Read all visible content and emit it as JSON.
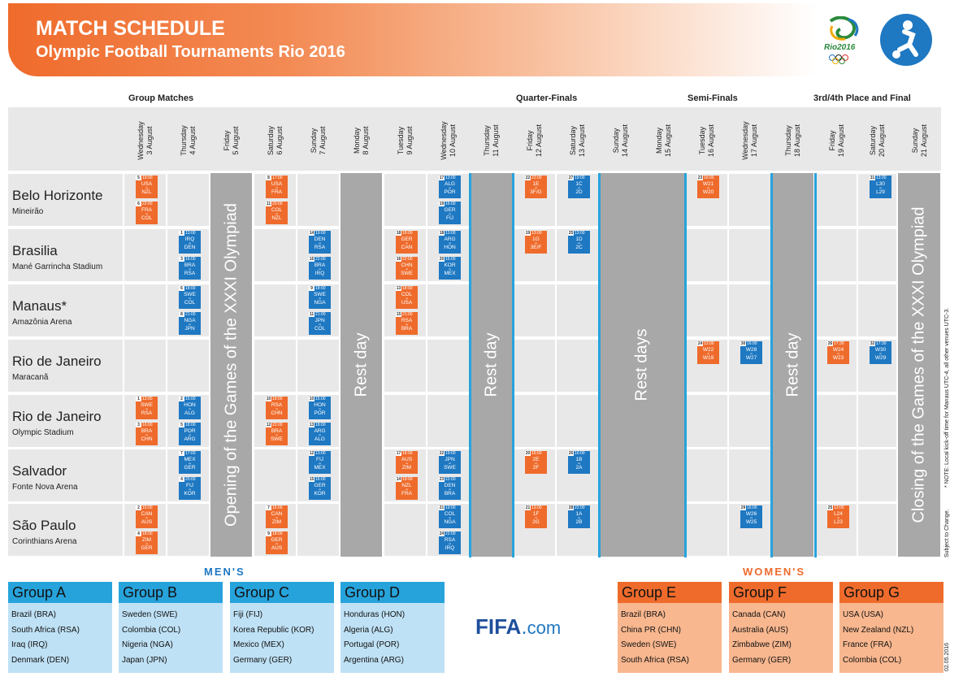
{
  "header": {
    "title": "MATCH SCHEDULE",
    "subtitle": "Olympic Football Tournaments Rio 2016",
    "rio_logo": "Rio2016",
    "fifa": "FIFA",
    "fifa_dot": ".",
    "fifa_com": "com"
  },
  "phases": [
    "Group Matches",
    "Quarter-Finals",
    "Semi-Finals",
    "3rd/4th Place and Final"
  ],
  "days": [
    {
      "line1": "Wednesday",
      "line2": "3 August"
    },
    {
      "line1": "Thursday",
      "line2": "4 August"
    },
    {
      "line1": "Friday",
      "line2": "5 August"
    },
    {
      "line1": "Saturday",
      "line2": "6 August"
    },
    {
      "line1": "Sunday",
      "line2": "7 August"
    },
    {
      "line1": "Monday",
      "line2": "8 August"
    },
    {
      "line1": "Tuesday",
      "line2": "9 August"
    },
    {
      "line1": "Wednesday",
      "line2": "10 August"
    },
    {
      "line1": "Thursday",
      "line2": "11 August"
    },
    {
      "line1": "Friday",
      "line2": "12 August"
    },
    {
      "line1": "Saturday",
      "line2": "13 August"
    },
    {
      "line1": "Sunday",
      "line2": "14 August"
    },
    {
      "line1": "Monday",
      "line2": "15 August"
    },
    {
      "line1": "Tuesday",
      "line2": "16 August"
    },
    {
      "line1": "Wednesday",
      "line2": "17 August"
    },
    {
      "line1": "Thursday",
      "line2": "18 August"
    },
    {
      "line1": "Friday",
      "line2": "19 August"
    },
    {
      "line1": "Saturday",
      "line2": "20 August"
    },
    {
      "line1": "Sunday",
      "line2": "21 August"
    }
  ],
  "venues": [
    {
      "city": "Belo Horizonte",
      "stadium": "Mineirão"
    },
    {
      "city": "Brasilia",
      "stadium": "Mané Garrincha Stadium"
    },
    {
      "city": "Manaus*",
      "stadium": "Amazônia Arena"
    },
    {
      "city": "Rio de Janeiro",
      "stadium": "Maracanã"
    },
    {
      "city": "Rio de Janeiro",
      "stadium": "Olympic Stadium"
    },
    {
      "city": "Salvador",
      "stadium": "Fonte Nova Arena"
    },
    {
      "city": "São Paulo",
      "stadium": "Corinthians Arena"
    }
  ],
  "bands": {
    "opening": "Opening of the Games of the XXXI Olympiad",
    "rest_day": "Rest day",
    "rest_days": "Rest days",
    "closing": "Closing of the Games of the XXXI Olympiad"
  },
  "matches": [
    {
      "n": "5",
      "t": "19:00",
      "a": "USA",
      "h": "NZL",
      "c": "o",
      "d": 0,
      "v": 0,
      "s": 0
    },
    {
      "n": "6",
      "t": "22:00",
      "a": "FRA",
      "h": "COL",
      "c": "o",
      "d": 0,
      "v": 0,
      "s": 1
    },
    {
      "n": "8",
      "t": "17:00",
      "a": "USA",
      "h": "FRA",
      "c": "o",
      "d": 3,
      "v": 0,
      "s": 0
    },
    {
      "n": "11",
      "t": "20:00",
      "a": "COL",
      "h": "NZL",
      "c": "o",
      "d": 3,
      "v": 0,
      "s": 1
    },
    {
      "n": "17",
      "t": "13:00",
      "a": "ALG",
      "h": "POR",
      "c": "b",
      "d": 7,
      "v": 0,
      "s": 0
    },
    {
      "n": "19",
      "t": "16:00",
      "a": "GER",
      "h": "FIJ",
      "c": "b",
      "d": 7,
      "v": 0,
      "s": 1
    },
    {
      "n": "22",
      "t": "22:00",
      "a": "1E",
      "h": "3F/G",
      "c": "o",
      "d": 9,
      "v": 0,
      "s": 0
    },
    {
      "n": "27",
      "t": "19:00",
      "a": "1C",
      "h": "2D",
      "c": "b",
      "d": 10,
      "v": 0,
      "s": 0
    },
    {
      "n": "23",
      "t": "16:00",
      "a": "W21",
      "h": "W20",
      "c": "o",
      "d": 13,
      "v": 0,
      "s": 0
    },
    {
      "n": "31",
      "t": "13:00",
      "a": "L30",
      "h": "L29",
      "c": "b",
      "d": 17,
      "v": 0,
      "s": 0
    },
    {
      "n": "1",
      "t": "13:00",
      "a": "IRQ",
      "h": "DEN",
      "c": "b",
      "d": 1,
      "v": 1,
      "s": 0
    },
    {
      "n": "3",
      "t": "16:00",
      "a": "BRA",
      "h": "RSA",
      "c": "b",
      "d": 1,
      "v": 1,
      "s": 1
    },
    {
      "n": "14",
      "t": "19:00",
      "a": "DEN",
      "h": "RSA",
      "c": "b",
      "d": 4,
      "v": 1,
      "s": 0
    },
    {
      "n": "16",
      "t": "22:00",
      "a": "BRA",
      "h": "IRQ",
      "c": "b",
      "d": 4,
      "v": 1,
      "s": 1
    },
    {
      "n": "18",
      "t": "16:00",
      "a": "GER",
      "h": "CAN",
      "c": "o",
      "d": 6,
      "v": 1,
      "s": 0
    },
    {
      "n": "16",
      "t": "22:00",
      "a": "CHN",
      "h": "SWE",
      "c": "o",
      "d": 6,
      "v": 1,
      "s": 1
    },
    {
      "n": "18",
      "t": "13:00",
      "a": "ARG",
      "h": "HON",
      "c": "b",
      "d": 7,
      "v": 1,
      "s": 0
    },
    {
      "n": "20",
      "t": "16:00",
      "a": "KOR",
      "h": "MEX",
      "c": "b",
      "d": 7,
      "v": 1,
      "s": 1
    },
    {
      "n": "19",
      "t": "13:00",
      "a": "1G",
      "h": "3E/F",
      "c": "o",
      "d": 9,
      "v": 1,
      "s": 0
    },
    {
      "n": "25",
      "t": "13:00",
      "a": "1D",
      "h": "2C",
      "c": "b",
      "d": 10,
      "v": 1,
      "s": 0
    },
    {
      "n": "6",
      "t": "18:00",
      "a": "SWE",
      "h": "COL",
      "c": "b",
      "d": 1,
      "v": 2,
      "s": 0
    },
    {
      "n": "8",
      "t": "21:00",
      "a": "NGA",
      "h": "JPN",
      "c": "b",
      "d": 1,
      "v": 2,
      "s": 1
    },
    {
      "n": "9",
      "t": "18:00",
      "a": "SWE",
      "h": "NGA",
      "c": "b",
      "d": 4,
      "v": 2,
      "s": 0
    },
    {
      "n": "11",
      "t": "21:00",
      "a": "JPN",
      "h": "COL",
      "c": "b",
      "d": 4,
      "v": 2,
      "s": 1
    },
    {
      "n": "13",
      "t": "18:00",
      "a": "COL",
      "h": "USA",
      "c": "o",
      "d": 6,
      "v": 2,
      "s": 0
    },
    {
      "n": "15",
      "t": "21:00",
      "a": "RSA",
      "h": "BRA",
      "c": "o",
      "d": 6,
      "v": 2,
      "s": 1
    },
    {
      "n": "24",
      "t": "13:00",
      "a": "W22",
      "h": "W19",
      "c": "o",
      "d": 13,
      "v": 3,
      "s": 0
    },
    {
      "n": "30",
      "t": "16:00",
      "a": "W28",
      "h": "W27",
      "c": "b",
      "d": 14,
      "v": 3,
      "s": 0
    },
    {
      "n": "26",
      "t": "17:30",
      "a": "W24",
      "h": "W23",
      "c": "o",
      "d": 16,
      "v": 3,
      "s": 0
    },
    {
      "n": "32",
      "t": "17:30",
      "a": "W30",
      "h": "W29",
      "c": "b",
      "d": 17,
      "v": 3,
      "s": 0
    },
    {
      "n": "1",
      "t": "13:00",
      "a": "SWE",
      "h": "RSA",
      "c": "o",
      "d": 0,
      "v": 4,
      "s": 0
    },
    {
      "n": "3",
      "t": "16:00",
      "a": "BRA",
      "h": "CHN",
      "c": "o",
      "d": 0,
      "v": 4,
      "s": 1
    },
    {
      "n": "2",
      "t": "15:00",
      "a": "HON",
      "h": "ALG",
      "c": "b",
      "d": 1,
      "v": 4,
      "s": 0
    },
    {
      "n": "5",
      "t": "18:00",
      "a": "POR",
      "h": "ARG",
      "c": "b",
      "d": 1,
      "v": 4,
      "s": 1
    },
    {
      "n": "10",
      "t": "19:00",
      "a": "RSA",
      "h": "CHN",
      "c": "o",
      "d": 3,
      "v": 4,
      "s": 0
    },
    {
      "n": "12",
      "t": "22:00",
      "a": "BRA",
      "h": "SWE",
      "c": "o",
      "d": 3,
      "v": 4,
      "s": 1
    },
    {
      "n": "10",
      "t": "15:00",
      "a": "HON",
      "h": "POR",
      "c": "b",
      "d": 4,
      "v": 4,
      "s": 0
    },
    {
      "n": "13",
      "t": "18:00",
      "a": "ARG",
      "h": "ALG",
      "c": "b",
      "d": 4,
      "v": 4,
      "s": 1
    },
    {
      "n": "7",
      "t": "17:00",
      "a": "MEX",
      "h": "GER",
      "c": "b",
      "d": 1,
      "v": 5,
      "s": 0
    },
    {
      "n": "4",
      "t": "20:00",
      "a": "FIJ",
      "h": "KOR",
      "c": "b",
      "d": 1,
      "v": 5,
      "s": 1
    },
    {
      "n": "12",
      "t": "13:00",
      "a": "FIJ",
      "h": "MEX",
      "c": "b",
      "d": 4,
      "v": 5,
      "s": 0
    },
    {
      "n": "15",
      "t": "16:00",
      "a": "GER",
      "h": "KOR",
      "c": "b",
      "d": 4,
      "v": 5,
      "s": 1
    },
    {
      "n": "17",
      "t": "16:00",
      "a": "AUS",
      "h": "ZIM",
      "c": "o",
      "d": 6,
      "v": 5,
      "s": 0
    },
    {
      "n": "14",
      "t": "19:00",
      "a": "NZL",
      "h": "FRA",
      "c": "o",
      "d": 6,
      "v": 5,
      "s": 1
    },
    {
      "n": "22",
      "t": "19:00",
      "a": "JPN",
      "h": "SWE",
      "c": "b",
      "d": 7,
      "v": 5,
      "s": 0
    },
    {
      "n": "23",
      "t": "22:00",
      "a": "DEN",
      "h": "BRA",
      "c": "b",
      "d": 7,
      "v": 5,
      "s": 1
    },
    {
      "n": "20",
      "t": "16:00",
      "a": "2E",
      "h": "2F",
      "c": "o",
      "d": 9,
      "v": 5,
      "s": 0
    },
    {
      "n": "26",
      "t": "16:00",
      "a": "1B",
      "h": "2A",
      "c": "b",
      "d": 10,
      "v": 5,
      "s": 0
    },
    {
      "n": "2",
      "t": "15:00",
      "a": "CAN",
      "h": "AUS",
      "c": "o",
      "d": 0,
      "v": 6,
      "s": 0
    },
    {
      "n": "4",
      "t": "18:00",
      "a": "ZIM",
      "h": "GER",
      "c": "o",
      "d": 0,
      "v": 6,
      "s": 1
    },
    {
      "n": "7",
      "t": "15:00",
      "a": "CAN",
      "h": "ZIM",
      "c": "o",
      "d": 3,
      "v": 6,
      "s": 0
    },
    {
      "n": "9",
      "t": "18:00",
      "a": "GER",
      "h": "AUS",
      "c": "o",
      "d": 3,
      "v": 6,
      "s": 1
    },
    {
      "n": "21",
      "t": "19:00",
      "a": "COL",
      "h": "NGA",
      "c": "b",
      "d": 7,
      "v": 6,
      "s": 0
    },
    {
      "n": "24",
      "t": "22:00",
      "a": "RSA",
      "h": "IRQ",
      "c": "b",
      "d": 7,
      "v": 6,
      "s": 1
    },
    {
      "n": "21",
      "t": "13:00",
      "a": "1F",
      "h": "2G",
      "c": "o",
      "d": 9,
      "v": 6,
      "s": 0
    },
    {
      "n": "28",
      "t": "22:00",
      "a": "1A",
      "h": "2B",
      "c": "b",
      "d": 10,
      "v": 6,
      "s": 0
    },
    {
      "n": "29",
      "t": "16:00",
      "a": "W26",
      "h": "W25",
      "c": "b",
      "d": 14,
      "v": 6,
      "s": 0
    },
    {
      "n": "25",
      "t": "13:00",
      "a": "L24",
      "h": "L23",
      "c": "o",
      "d": 16,
      "v": 6,
      "s": 0
    }
  ],
  "vs_text": "vs",
  "mens_label": "MEN'S",
  "womens_label": "WOMEN'S",
  "groups": [
    {
      "name": "Group A",
      "teams": [
        "Brazil (BRA)",
        "South Africa (RSA)",
        "Iraq (IRQ)",
        "Denmark (DEN)"
      ]
    },
    {
      "name": "Group B",
      "teams": [
        "Sweden (SWE)",
        "Colombia (COL)",
        "Nigeria (NGA)",
        "Japan (JPN)"
      ]
    },
    {
      "name": "Group C",
      "teams": [
        "Fiji (FIJ)",
        "Korea Republic (KOR)",
        "Mexico (MEX)",
        "Germany (GER)"
      ]
    },
    {
      "name": "Group D",
      "teams": [
        "Honduras (HON)",
        "Algeria (ALG)",
        "Portugal (POR)",
        "Argentina (ARG)"
      ]
    },
    {
      "name": "Group E",
      "teams": [
        "Brazil (BRA)",
        "China PR (CHN)",
        "Sweden (SWE)",
        "South Africa (RSA)"
      ]
    },
    {
      "name": "Group F",
      "teams": [
        "Canada (CAN)",
        "Australia (AUS)",
        "Zimbabwe (ZIM)",
        "Germany (GER)"
      ]
    },
    {
      "name": "Group G",
      "teams": [
        "USA (USA)",
        "New Zealand (NZL)",
        "France (FRA)",
        "Colombia (COL)"
      ]
    }
  ],
  "notes": {
    "time_note": "* NOTE: Local kick-off time for Manaus UTC-4, all other venues UTC-3.",
    "subject": "Subject to Change.",
    "date": "02.05.2016"
  },
  "colors": {
    "women": "#ef6b2c",
    "men": "#1e78c2",
    "men_light": "#27a3dc",
    "band": "#a8a8a8",
    "cell": "#e8e8e8"
  }
}
